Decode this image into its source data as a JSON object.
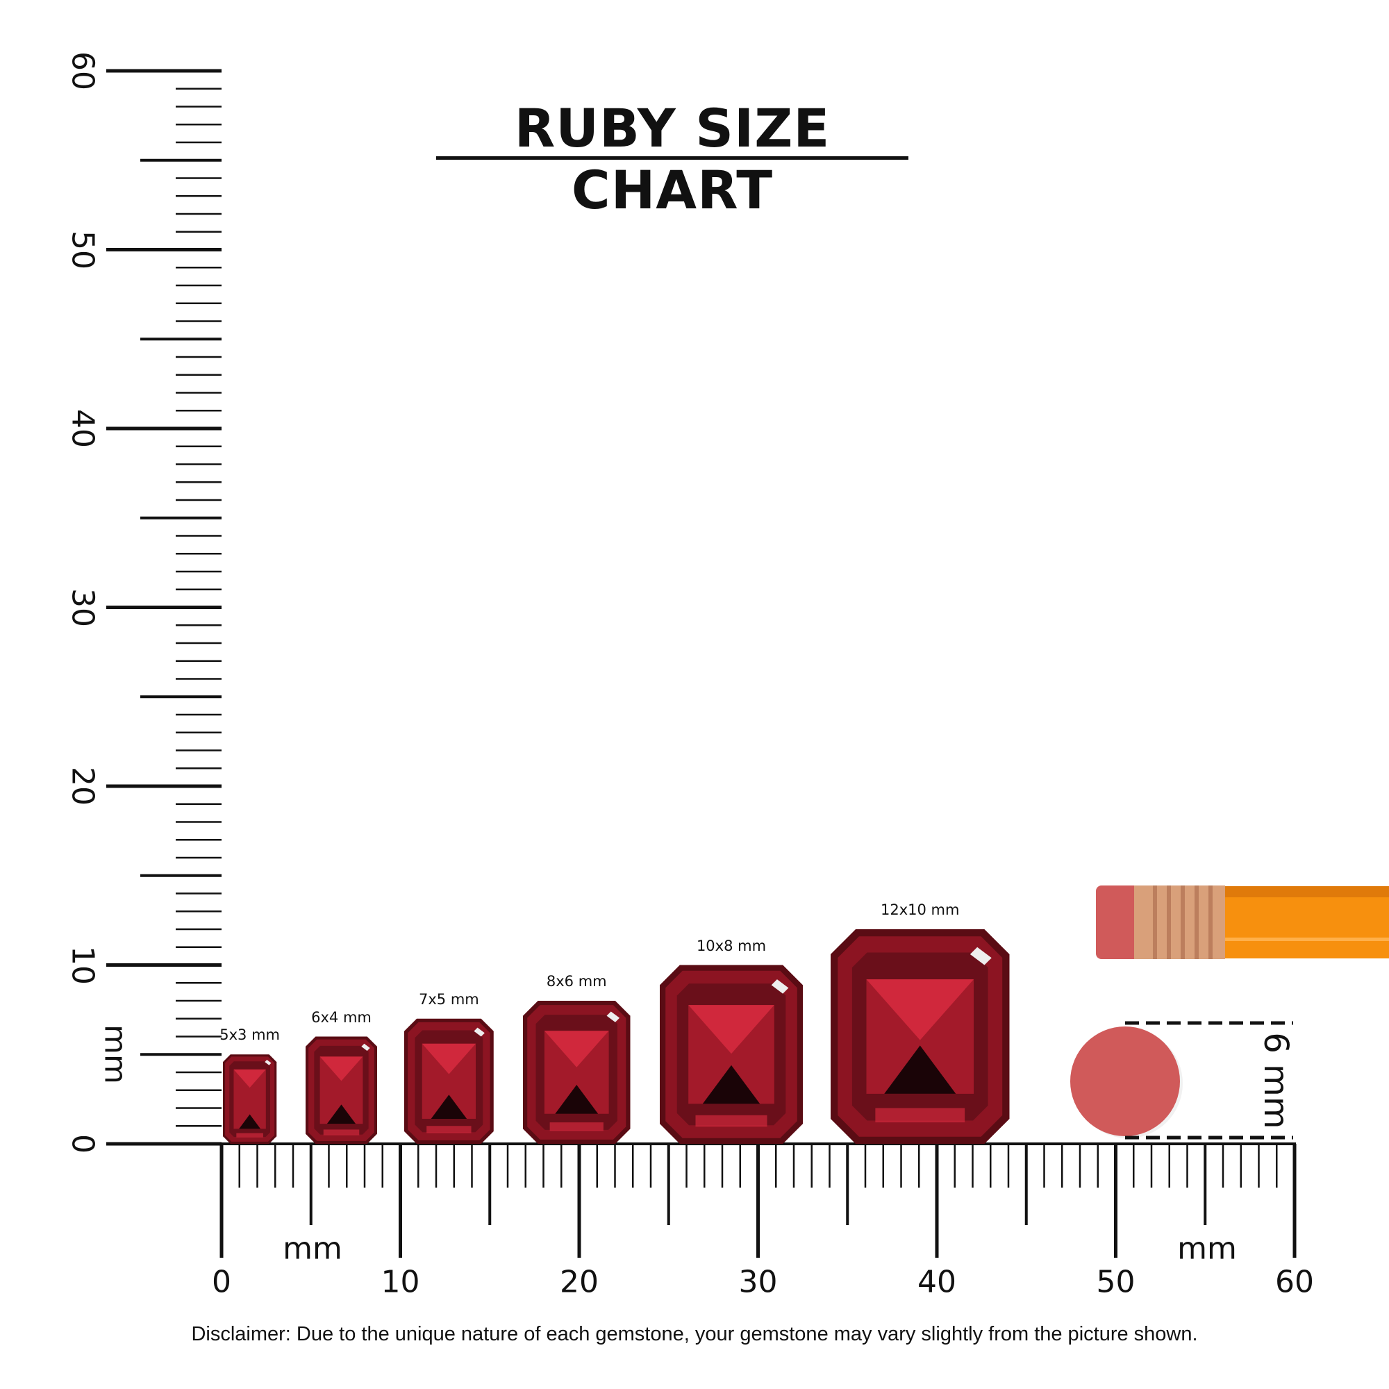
{
  "title": "RUBY SIZE CHART",
  "disclaimer": "Disclaimer: Due to the unique nature of each gemstone, your gemstone may vary slightly from the picture shown.",
  "rulers": {
    "unit_label": "mm",
    "horizontal": {
      "min": 0,
      "max": 60,
      "labels": [
        "0",
        "10",
        "20",
        "30",
        "40",
        "50",
        "60"
      ]
    },
    "vertical": {
      "min": 0,
      "max": 60,
      "labels": [
        "0",
        "10",
        "20",
        "30",
        "40",
        "50",
        "60"
      ]
    }
  },
  "gems": [
    {
      "label": "5x3 mm",
      "length_mm": 5,
      "width_mm": 3
    },
    {
      "label": "6x4 mm",
      "length_mm": 6,
      "width_mm": 4
    },
    {
      "label": "7x5 mm",
      "length_mm": 7,
      "width_mm": 5
    },
    {
      "label": "8x6 mm",
      "length_mm": 8,
      "width_mm": 6
    },
    {
      "label": "10x8 mm",
      "length_mm": 10,
      "width_mm": 8
    },
    {
      "label": "12x10 mm",
      "length_mm": 12,
      "width_mm": 10
    }
  ],
  "reference": {
    "object": "pencil eraser",
    "label": "6 mm",
    "diameter_mm": 6
  },
  "colors": {
    "ruby": "#8c1422",
    "ruby_light": "#d0283c",
    "eraser": "#d05a5a",
    "pencil": "#f7900e",
    "ferrule": "#d9a07a"
  }
}
